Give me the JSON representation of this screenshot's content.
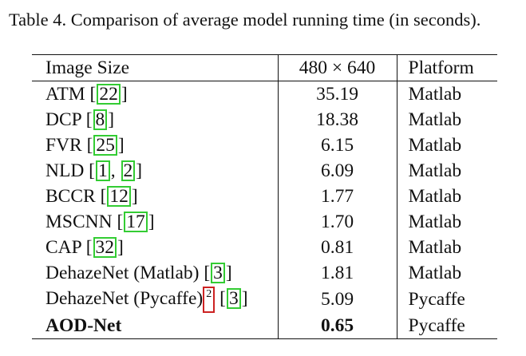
{
  "caption": "Table 4. Comparison of average model running time (in seconds).",
  "table": {
    "headers": [
      "Image Size",
      "480 × 640",
      "Platform"
    ],
    "rows": [
      {
        "method": "ATM",
        "refs": [
          "22"
        ],
        "time": "35.19",
        "platform": "Matlab"
      },
      {
        "method": "DCP",
        "refs": [
          "8"
        ],
        "time": "18.38",
        "platform": "Matlab"
      },
      {
        "method": "FVR",
        "refs": [
          "25"
        ],
        "time": "6.15",
        "platform": "Matlab"
      },
      {
        "method": "NLD",
        "refs": [
          "1",
          "2"
        ],
        "time": "6.09",
        "platform": "Matlab"
      },
      {
        "method": "BCCR",
        "refs": [
          "12"
        ],
        "time": "1.77",
        "platform": "Matlab"
      },
      {
        "method": "MSCNN",
        "refs": [
          "17"
        ],
        "time": "1.70",
        "platform": "Matlab"
      },
      {
        "method": "CAP",
        "refs": [
          "32"
        ],
        "time": "0.81",
        "platform": "Matlab"
      },
      {
        "method": "DehazeNet (Matlab)",
        "refs": [
          "3"
        ],
        "time": "1.81",
        "platform": "Matlab"
      },
      {
        "method": "DehazeNet (Pycaffe)",
        "footnote": "2",
        "refs": [
          "3"
        ],
        "time": "5.09",
        "platform": "Pycaffe"
      },
      {
        "method": "AOD-Net",
        "refs": [],
        "time": "0.65",
        "platform": "Pycaffe",
        "bold": true
      }
    ]
  },
  "colors": {
    "citation_box": "#33cc33",
    "footnote_box": "#cc2222",
    "text": "#111111"
  }
}
